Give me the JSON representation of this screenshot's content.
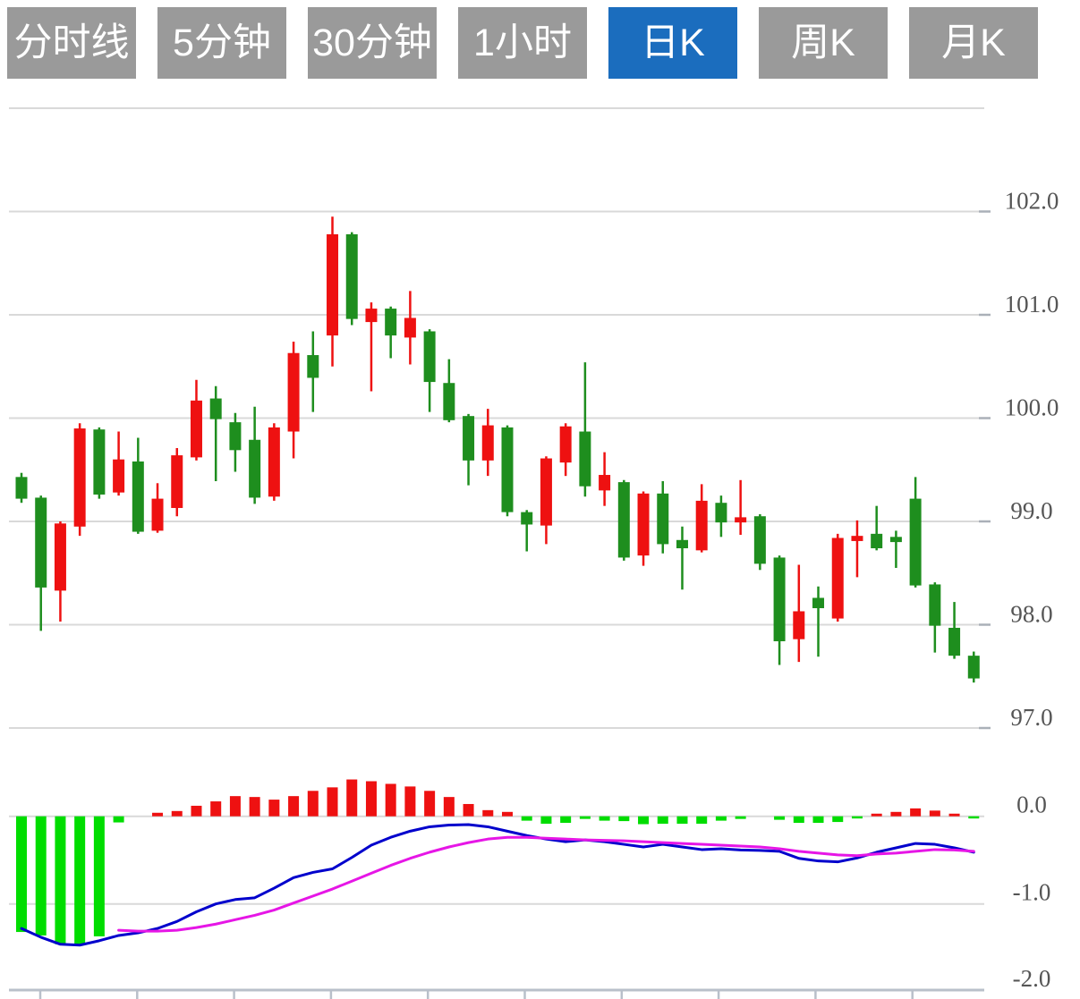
{
  "tabs": [
    {
      "name": "tab-time-line",
      "label": "分时线",
      "active": false
    },
    {
      "name": "tab-5min",
      "label": "5分钟",
      "active": false
    },
    {
      "name": "tab-30min",
      "label": "30分钟",
      "active": false
    },
    {
      "name": "tab-1hour",
      "label": "1小时",
      "active": false
    },
    {
      "name": "tab-daily-k",
      "label": "日K",
      "active": true
    },
    {
      "name": "tab-weekly-k",
      "label": "周K",
      "active": false
    },
    {
      "name": "tab-monthly-k",
      "label": "月K",
      "active": false
    }
  ],
  "colors": {
    "up_green": "#1e8e1e",
    "down_red": "#ee1111",
    "hist_green": "#00dd00",
    "hist_red": "#ee1111",
    "dif_blue": "#0000cc",
    "dea_magenta": "#e616e6",
    "grid": "#d9d9d9",
    "axis": "#b9c0ca",
    "label_gray": "#555555",
    "tab_active_bg": "#1b6dbe",
    "tab_bg": "#9a9a9a"
  },
  "chart_data": {
    "type": "candlestick",
    "title": "",
    "legend_position": "none",
    "grid": true,
    "panels": [
      {
        "type": "candlestick",
        "y_axis": {
          "side": "right",
          "ticks": [
            {
              "label": "102.0",
              "value": 102.0
            },
            {
              "label": "101.0",
              "value": 101.0
            },
            {
              "label": "100.0",
              "value": 100.0
            },
            {
              "label": "99.0",
              "value": 99.0
            },
            {
              "label": "98.0",
              "value": 98.0
            },
            {
              "label": "97.0",
              "value": 97.0
            }
          ],
          "top_border_value": 103.0,
          "range": [
            96.3,
            103.0
          ]
        },
        "ohlc_note": "each candle = [open, high, low, close]",
        "candles": [
          [
            99.22,
            99.47,
            99.18,
            99.43
          ],
          [
            98.36,
            99.25,
            97.94,
            99.23
          ],
          [
            98.98,
            99.0,
            98.03,
            98.33
          ],
          [
            99.9,
            99.95,
            98.86,
            98.95
          ],
          [
            99.26,
            99.91,
            99.22,
            99.89
          ],
          [
            99.6,
            99.87,
            99.25,
            99.28
          ],
          [
            98.9,
            99.81,
            98.88,
            99.58
          ],
          [
            99.22,
            99.37,
            98.89,
            98.91
          ],
          [
            99.64,
            99.71,
            99.05,
            99.13
          ],
          [
            100.17,
            100.37,
            99.59,
            99.62
          ],
          [
            99.99,
            100.31,
            99.39,
            100.19
          ],
          [
            99.69,
            100.05,
            99.48,
            99.96
          ],
          [
            99.23,
            100.11,
            99.17,
            99.79
          ],
          [
            99.91,
            99.95,
            99.2,
            99.24
          ],
          [
            100.63,
            100.74,
            99.61,
            99.87
          ],
          [
            100.39,
            100.84,
            100.06,
            100.61
          ],
          [
            101.78,
            101.95,
            100.5,
            100.8
          ],
          [
            100.96,
            101.8,
            100.9,
            101.78
          ],
          [
            101.06,
            101.12,
            100.26,
            100.93
          ],
          [
            100.8,
            101.08,
            100.58,
            101.06
          ],
          [
            100.97,
            101.23,
            100.52,
            100.78
          ],
          [
            100.35,
            100.86,
            100.06,
            100.84
          ],
          [
            99.98,
            100.57,
            99.96,
            100.34
          ],
          [
            99.59,
            100.04,
            99.35,
            100.02
          ],
          [
            99.93,
            100.09,
            99.44,
            99.59
          ],
          [
            99.09,
            99.93,
            99.05,
            99.91
          ],
          [
            98.97,
            99.11,
            98.71,
            99.09
          ],
          [
            99.61,
            99.63,
            98.78,
            98.96
          ],
          [
            99.92,
            99.95,
            99.44,
            99.57
          ],
          [
            99.34,
            100.54,
            99.24,
            99.87
          ],
          [
            99.45,
            99.67,
            99.15,
            99.3
          ],
          [
            98.65,
            99.4,
            98.62,
            99.38
          ],
          [
            99.27,
            99.29,
            98.57,
            98.67
          ],
          [
            98.78,
            99.39,
            98.69,
            99.27
          ],
          [
            98.74,
            98.95,
            98.34,
            98.82
          ],
          [
            99.2,
            99.36,
            98.7,
            98.72
          ],
          [
            98.99,
            99.25,
            98.85,
            99.18
          ],
          [
            99.04,
            99.4,
            98.87,
            98.99
          ],
          [
            98.59,
            99.07,
            98.53,
            99.05
          ],
          [
            97.84,
            98.67,
            97.61,
            98.65
          ],
          [
            98.13,
            98.58,
            97.64,
            97.86
          ],
          [
            98.16,
            98.37,
            97.69,
            98.26
          ],
          [
            98.84,
            98.88,
            98.03,
            98.06
          ],
          [
            98.86,
            99.01,
            98.46,
            98.81
          ],
          [
            98.74,
            99.15,
            98.72,
            98.88
          ],
          [
            98.8,
            98.91,
            98.55,
            98.85
          ],
          [
            98.38,
            99.43,
            98.36,
            99.22
          ],
          [
            97.99,
            98.41,
            97.73,
            98.39
          ],
          [
            97.7,
            98.22,
            97.67,
            97.97
          ],
          [
            97.48,
            97.74,
            97.44,
            97.7
          ]
        ]
      },
      {
        "type": "macd",
        "y_axis": {
          "side": "right",
          "ticks": [
            {
              "label": "0.0",
              "value": 0.0
            },
            {
              "label": "-1.0",
              "value": -1.0
            },
            {
              "label": "-2.0",
              "value": -2.0
            }
          ],
          "range": [
            -2.0,
            0.6
          ]
        },
        "histogram": [
          -1.32,
          -1.36,
          -1.46,
          -1.47,
          -1.37,
          -0.07,
          0.0,
          0.04,
          0.06,
          0.12,
          0.17,
          0.23,
          0.22,
          0.19,
          0.23,
          0.29,
          0.33,
          0.42,
          0.4,
          0.37,
          0.34,
          0.29,
          0.22,
          0.14,
          0.07,
          0.05,
          -0.05,
          -0.085,
          -0.075,
          -0.03,
          -0.05,
          -0.055,
          -0.09,
          -0.085,
          -0.085,
          -0.085,
          -0.05,
          -0.03,
          0.0,
          -0.04,
          -0.075,
          -0.075,
          -0.065,
          -0.025,
          0.03,
          0.05,
          0.09,
          0.065,
          0.03,
          -0.025
        ],
        "dif": [
          -1.28,
          -1.38,
          -1.46,
          -1.47,
          -1.42,
          -1.36,
          -1.33,
          -1.28,
          -1.2,
          -1.09,
          -1.0,
          -0.95,
          -0.93,
          -0.82,
          -0.7,
          -0.64,
          -0.6,
          -0.47,
          -0.33,
          -0.24,
          -0.17,
          -0.12,
          -0.1,
          -0.095,
          -0.12,
          -0.17,
          -0.22,
          -0.26,
          -0.29,
          -0.27,
          -0.29,
          -0.32,
          -0.35,
          -0.32,
          -0.35,
          -0.38,
          -0.37,
          -0.385,
          -0.39,
          -0.4,
          -0.48,
          -0.51,
          -0.52,
          -0.475,
          -0.41,
          -0.36,
          -0.31,
          -0.32,
          -0.36,
          -0.41
        ],
        "dea": [
          null,
          null,
          null,
          null,
          null,
          -1.3,
          -1.31,
          -1.31,
          -1.3,
          -1.27,
          -1.23,
          -1.18,
          -1.13,
          -1.07,
          -0.99,
          -0.91,
          -0.83,
          -0.74,
          -0.65,
          -0.56,
          -0.48,
          -0.41,
          -0.35,
          -0.3,
          -0.26,
          -0.24,
          -0.24,
          -0.25,
          -0.26,
          -0.27,
          -0.275,
          -0.28,
          -0.29,
          -0.3,
          -0.31,
          -0.32,
          -0.33,
          -0.34,
          -0.35,
          -0.37,
          -0.4,
          -0.42,
          -0.44,
          -0.45,
          -0.43,
          -0.42,
          -0.4,
          -0.38,
          -0.385,
          -0.4
        ]
      }
    ]
  }
}
